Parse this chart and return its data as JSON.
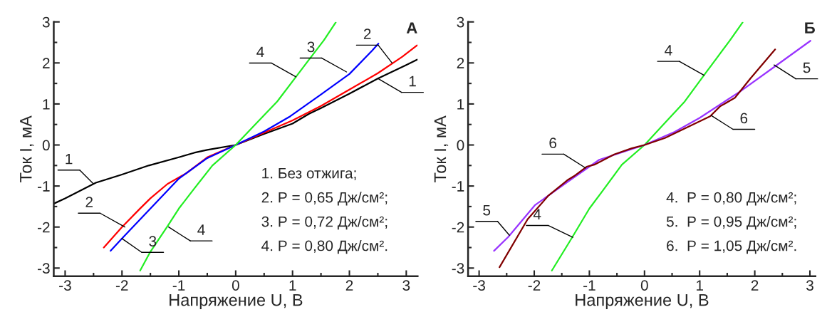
{
  "chart_data": [
    {
      "type": "line",
      "title": "А",
      "xlabel": "Напряжение U, В",
      "ylabel": "Ток I, мА",
      "xlim": [
        -3.2,
        3.2
      ],
      "ylim": [
        -3.2,
        3
      ],
      "xticks": [
        -3,
        -2,
        -1,
        0,
        1,
        2,
        3
      ],
      "yticks": [
        -3,
        -2,
        -1,
        0,
        1,
        2,
        3
      ],
      "grid": false,
      "legend": false,
      "line_style": "solid",
      "series": [
        {
          "color": "#000000",
          "x": [
            -3.2,
            -3,
            -2.46,
            -2,
            -1.53,
            -1,
            -0.73,
            -0.5,
            0,
            0.5,
            1,
            1.29,
            1.5,
            2,
            2.5,
            3,
            3.19
          ],
          "values": [
            -1.43,
            -1.3,
            -0.92,
            -0.72,
            -0.5,
            -0.3,
            -0.19,
            -0.12,
            0,
            0.27,
            0.52,
            0.76,
            0.9,
            1.25,
            1.62,
            1.95,
            2.08
          ]
        },
        {
          "color": "#ff0000",
          "x": [
            -2.32,
            -2,
            -1.69,
            -1.5,
            -1.2,
            -0.87,
            -0.5,
            0,
            0.5,
            1,
            1.5,
            2,
            2.5,
            2.93,
            3.19
          ],
          "values": [
            -2.5,
            -2.0,
            -1.56,
            -1.3,
            -0.95,
            -0.69,
            -0.3,
            0,
            0.3,
            0.6,
            0.95,
            1.35,
            1.75,
            2.15,
            2.43
          ]
        },
        {
          "color": "#0000ff",
          "x": [
            -2.2,
            -2,
            -1.5,
            -1,
            -0.5,
            0,
            0.5,
            0.96,
            1.5,
            2,
            2.4,
            2.51
          ],
          "values": [
            -2.58,
            -2.28,
            -1.55,
            -0.82,
            -0.32,
            0,
            0.33,
            0.7,
            1.23,
            1.73,
            2.3,
            2.47
          ]
        },
        {
          "color": "#22ee22",
          "x": [
            -1.68,
            -1.5,
            -1.2,
            -1.0,
            -0.75,
            -0.41,
            0,
            0.37,
            0.73,
            1.06,
            1.3,
            1.55,
            1.76
          ],
          "values": [
            -3.06,
            -2.6,
            -1.98,
            -1.55,
            -1.1,
            -0.5,
            0,
            0.54,
            1.06,
            1.66,
            2.1,
            2.55,
            2.99
          ]
        }
      ],
      "annotations": [
        {
          "text": "1",
          "x": -2.5,
          "y": -0.95
        },
        {
          "text": "2",
          "x": -1.95,
          "y": -2.0
        },
        {
          "text": "3",
          "x": -2.0,
          "y": -2.28
        },
        {
          "text": "4",
          "x": -1.18,
          "y": -2.0
        },
        {
          "text": "4",
          "x": 1.06,
          "y": 1.66
        },
        {
          "text": "3",
          "x": 1.95,
          "y": 1.78
        },
        {
          "text": "2",
          "x": 2.75,
          "y": 2.0
        },
        {
          "text": "1",
          "x": 2.5,
          "y": 1.62
        },
        "1. Без отжига;",
        "2. Р = 0,65 Дж/см²;",
        "3. Р = 0,72 Дж/см²;",
        "4. Р = 0,80 Дж/см²."
      ]
    },
    {
      "type": "line",
      "title": "Б",
      "xlabel": "Напряжение U, В",
      "ylabel": "Ток I, мА",
      "xlim": [
        -3.2,
        3.1
      ],
      "ylim": [
        -3.2,
        3
      ],
      "xticks": [
        -3,
        -2,
        -1,
        0,
        1,
        2,
        3
      ],
      "yticks": [
        -3,
        -2,
        -1,
        0,
        1,
        2,
        3
      ],
      "grid": false,
      "legend": false,
      "line_style": "solid",
      "series": [
        {
          "color": "#22ee22",
          "x": [
            -1.68,
            -1.32,
            -1.0,
            -0.75,
            -0.41,
            0,
            0.37,
            0.73,
            1.1,
            1.3,
            1.55,
            1.78
          ],
          "values": [
            -3.06,
            -2.27,
            -1.55,
            -1.1,
            -0.48,
            0,
            0.54,
            1.06,
            1.74,
            2.1,
            2.55,
            2.99
          ]
        },
        {
          "color": "#9933ff",
          "x": [
            -2.73,
            -2.47,
            -1.99,
            -1.28,
            -0.82,
            0,
            0.55,
            1.0,
            1.74,
            2.33,
            3.01
          ],
          "values": [
            -2.58,
            -2.24,
            -1.47,
            -0.79,
            -0.36,
            0,
            0.32,
            0.66,
            1.31,
            1.88,
            2.54
          ]
        },
        {
          "color": "#800000",
          "x": [
            -2.63,
            -2.12,
            -1.74,
            -1.39,
            -1.28,
            -1.05,
            -0.91,
            -0.55,
            -0.23,
            0,
            0.37,
            0.82,
            1.19,
            1.37,
            1.64,
            1.92,
            2.37
          ],
          "values": [
            -2.98,
            -1.81,
            -1.23,
            -0.85,
            -0.76,
            -0.53,
            -0.48,
            -0.23,
            -0.08,
            0,
            0.17,
            0.46,
            0.7,
            0.94,
            1.15,
            1.62,
            2.33
          ]
        }
      ],
      "annotations": [
        {
          "text": "6",
          "x": -1.07,
          "y": -0.56
        },
        {
          "text": "5",
          "x": -2.45,
          "y": -2.2
        },
        {
          "text": "4",
          "x": -1.3,
          "y": -2.25
        },
        {
          "text": "4",
          "x": 1.08,
          "y": 1.7
        },
        {
          "text": "5",
          "x": 2.35,
          "y": 1.95
        },
        {
          "text": "6",
          "x": 1.21,
          "y": 0.72
        },
        "4.  Р = 0,80 Дж/см²;",
        "5.  Р = 0,95 Дж/см²;",
        "6.  Р = 1,05 Дж/см²."
      ]
    }
  ]
}
